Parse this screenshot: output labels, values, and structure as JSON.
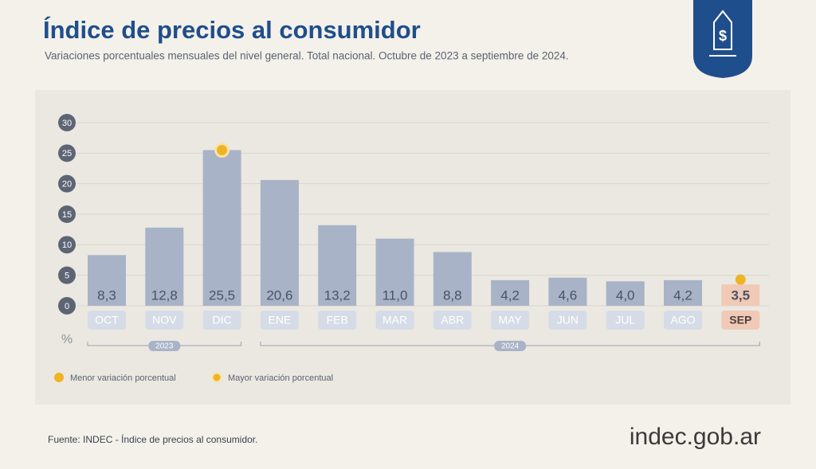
{
  "chart_data": {
    "type": "bar",
    "title": "Índice de precios al consumidor",
    "subtitle": "Variaciones porcentuales mensuales del nivel general. Total nacional. Octubre de 2023 a septiembre de 2024.",
    "categories": [
      "OCT",
      "NOV",
      "DIC",
      "ENE",
      "FEB",
      "MAR",
      "ABR",
      "MAY",
      "JUN",
      "JUL",
      "AGO",
      "SEP"
    ],
    "values": [
      8.3,
      12.8,
      25.5,
      20.6,
      13.2,
      11.0,
      8.8,
      4.2,
      4.6,
      4.0,
      4.2,
      3.5
    ],
    "value_labels": [
      "8,3",
      "12,8",
      "25,5",
      "20,6",
      "13,2",
      "11,0",
      "8,8",
      "4,2",
      "4,6",
      "4,0",
      "4,2",
      "3,5"
    ],
    "color": "#a8b3c7",
    "highlight_color": "#f0cab6",
    "marker_color": "#f0b323",
    "ylim": [
      0,
      30
    ],
    "yticks": [
      0,
      5,
      10,
      15,
      20,
      25,
      30
    ],
    "grid": true,
    "y_unit": "%",
    "groups": [
      {
        "label": "2023",
        "span": [
          0,
          2
        ]
      },
      {
        "label": "2024",
        "span": [
          3,
          11
        ]
      }
    ],
    "legend": {
      "min": "Menor variación porcentual",
      "max": "Mayor variación porcentual"
    },
    "source": "Fuente: INDEC - Índice de precios al consumidor.",
    "brand": "indec.gob.ar"
  }
}
